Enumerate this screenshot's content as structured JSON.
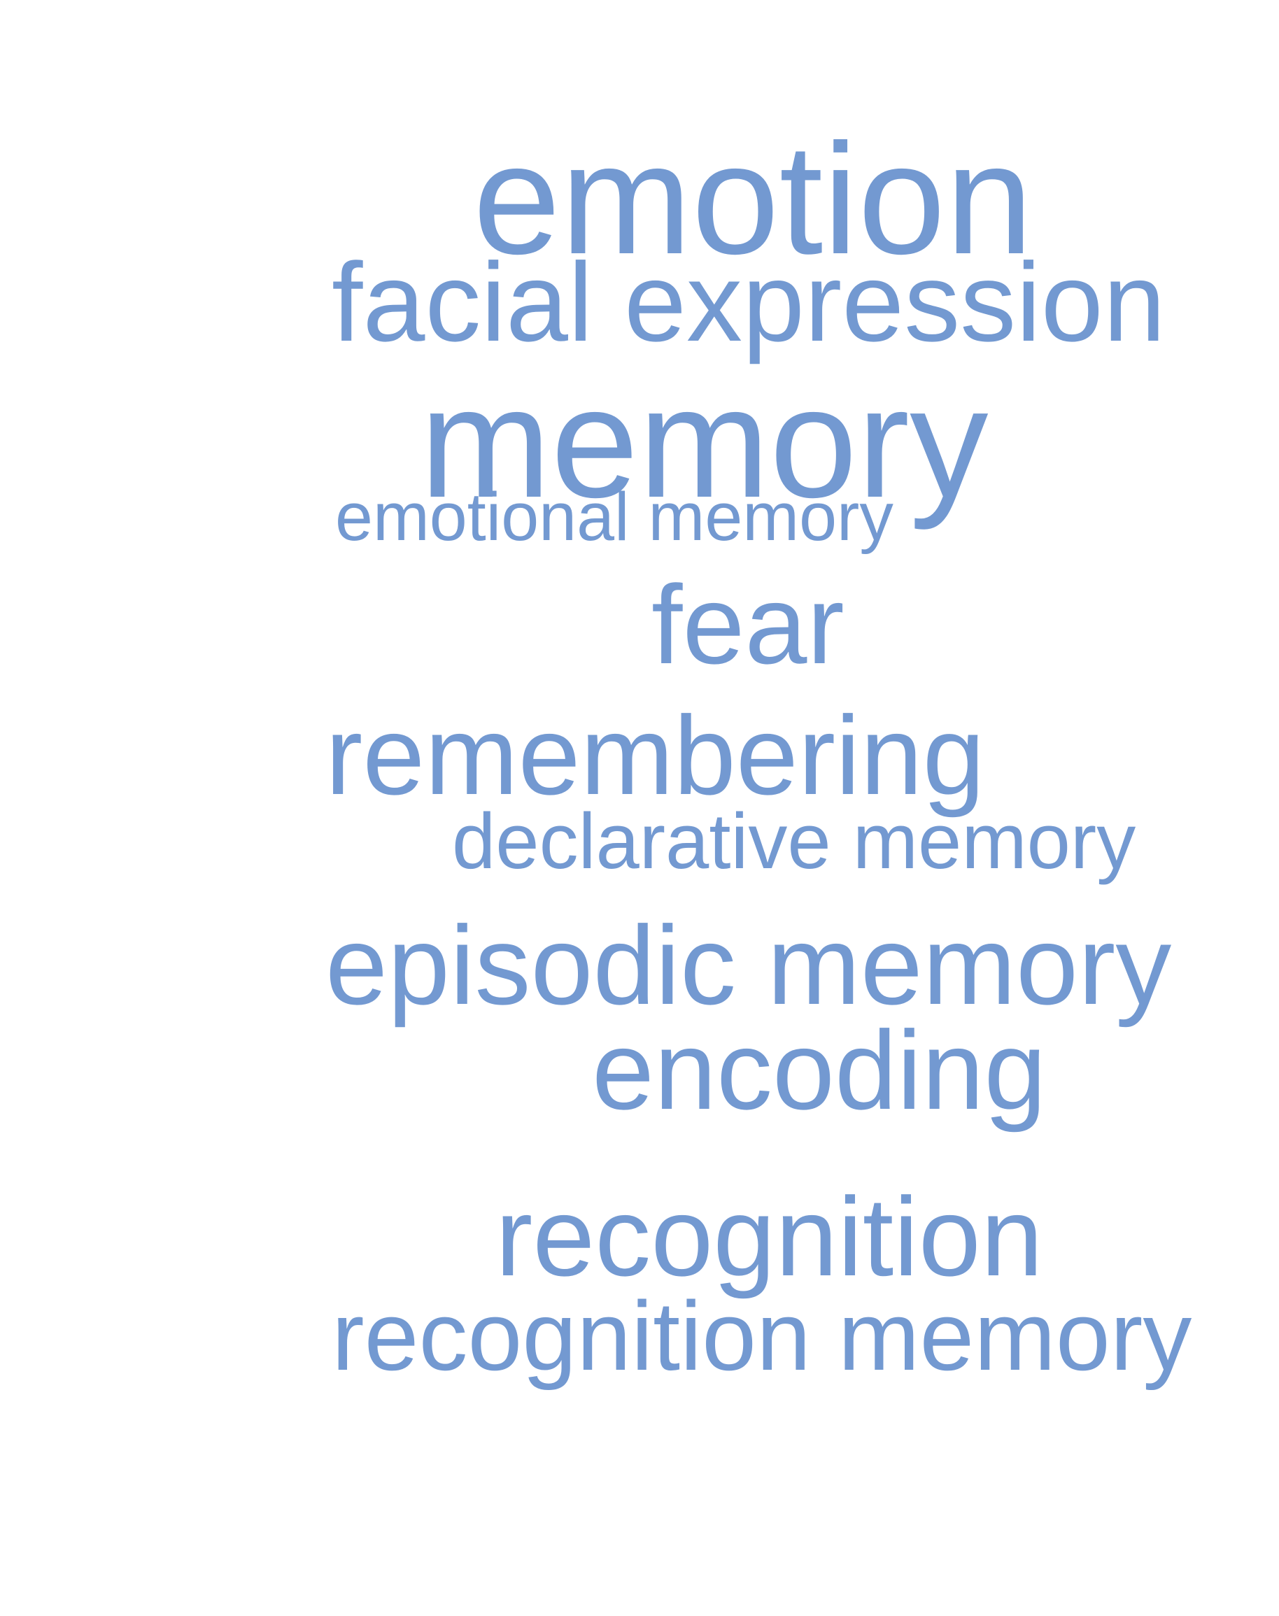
{
  "word_cloud": {
    "color": "#7399d1",
    "words": [
      {
        "text": "emotion"
      },
      {
        "text": "facial expression"
      },
      {
        "text": "memory"
      },
      {
        "text": "emotional memory"
      },
      {
        "text": "fear"
      },
      {
        "text": "remembering"
      },
      {
        "text": "declarative memory"
      },
      {
        "text": "episodic memory"
      },
      {
        "text": "encoding"
      },
      {
        "text": "recognition"
      },
      {
        "text": "recognition memory"
      }
    ]
  }
}
